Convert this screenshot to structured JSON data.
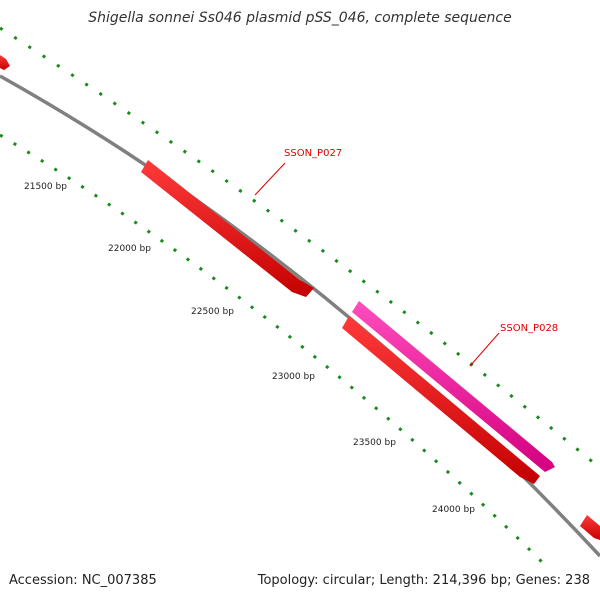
{
  "title": "Shigella sonnei Ss046 plasmid pSS_046, complete sequence",
  "footer": {
    "accession": "Accession: NC_007385",
    "summary": "Topology: circular; Length: 214,396 bp; Genes: 238"
  },
  "colors": {
    "backbone": "#808080",
    "gene_red": "#ff0000",
    "gene_pink": "#ff1aa6",
    "tick_green": "#1a8a1a",
    "label_red": "#e00000"
  },
  "position_labels": [
    {
      "bp": 21500,
      "text": "21500 bp"
    },
    {
      "bp": 22000,
      "text": "22000 bp"
    },
    {
      "bp": 22500,
      "text": "22500 bp"
    },
    {
      "bp": 23000,
      "text": "23000 bp"
    },
    {
      "bp": 23500,
      "text": "23500 bp"
    },
    {
      "bp": 24000,
      "text": "24000 bp"
    }
  ],
  "genes": [
    {
      "name": "SSON_P027",
      "label": "SSON_P027",
      "color": "gene_red",
      "strand": "+"
    },
    {
      "name": "SSON_P028",
      "label": "SSON_P028",
      "color": "gene_pink",
      "strand": "-"
    },
    {
      "name": "gene-reverse",
      "label": "",
      "color": "gene_red",
      "strand": "+"
    }
  ]
}
